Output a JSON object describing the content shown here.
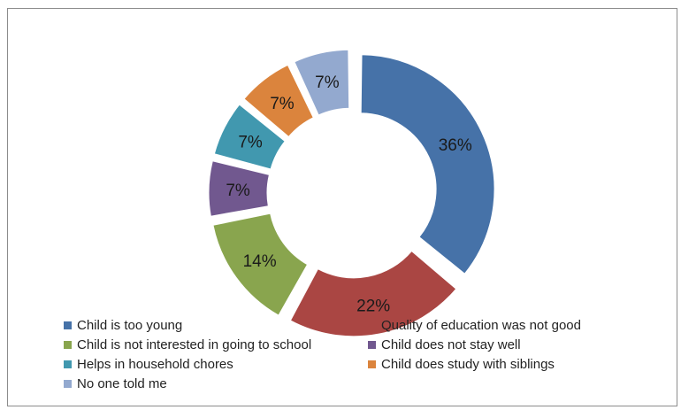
{
  "chart_data": {
    "type": "pie",
    "variant": "exploded-doughnut",
    "title": "",
    "categories": [
      "Child is too young",
      "Quality of education was not good",
      "Child is not interested in going to school",
      "Child does not stay well",
      "Helps in household chores",
      "Child does study with siblings",
      "No one told me"
    ],
    "values": [
      36,
      22,
      14,
      7,
      7,
      7,
      7
    ],
    "data_labels": [
      "36%",
      "22%",
      "14%",
      "7%",
      "7%",
      "7%",
      "7%"
    ],
    "colors": [
      "#4672a8",
      "#aa4643",
      "#89a54e",
      "#71588f",
      "#4198af",
      "#db843d",
      "#93a9cf"
    ],
    "legend_position": "bottom"
  }
}
